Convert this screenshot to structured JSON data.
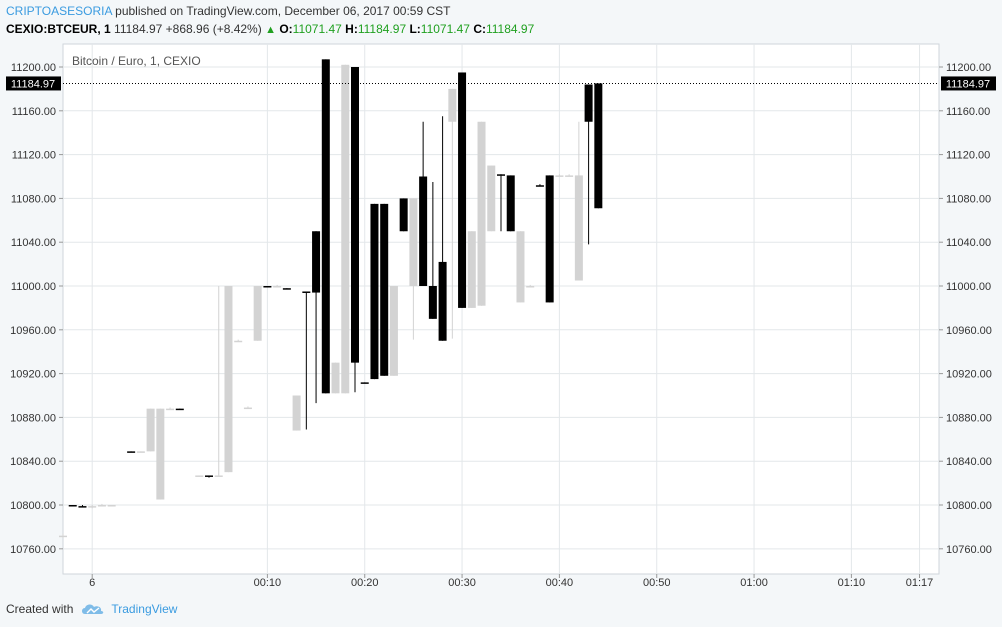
{
  "header": {
    "author": "CRIPTOASESORIA",
    "published": "published on TradingView.com, December 06, 2017 00:59 CST",
    "symbol": "CEXIO:BTCEUR, 1",
    "last": "11184.97",
    "change": "+868.96 (+8.42%)",
    "o_label": "O:",
    "o_value": "11071.47",
    "h_label": "H:",
    "h_value": "11184.97",
    "l_label": "L:",
    "l_value": "11071.47",
    "c_label": "C:",
    "c_value": "11184.97"
  },
  "footer": {
    "created_with": "Created with",
    "brand": "TradingView"
  },
  "colors": {
    "up": "#d3d3d3",
    "down": "#000000",
    "grid": "#e3e7ea",
    "axis_text": "#333333",
    "accent": "#3a9be0"
  },
  "chart_data": {
    "type": "candlestick",
    "title": "Bitcoin / Euro, 1, CEXIO",
    "y_ticks": [
      10760,
      10800,
      10840,
      10880,
      10920,
      10960,
      11000,
      11040,
      11080,
      11120,
      11160,
      11200
    ],
    "ylim": [
      10737,
      11221
    ],
    "y_tick_labels": [
      "10760.00",
      "10800.00",
      "10840.00",
      "10880.00",
      "10920.00",
      "10960.00",
      "11000.00",
      "11040.00",
      "11080.00",
      "11120.00",
      "11160.00",
      "11200.00"
    ],
    "x_ticks": [
      {
        "label": "6",
        "minute": -8
      },
      {
        "label": "00:10",
        "minute": 10
      },
      {
        "label": "00:20",
        "minute": 20
      },
      {
        "label": "00:30",
        "minute": 30
      },
      {
        "label": "00:40",
        "minute": 40
      },
      {
        "label": "00:50",
        "minute": 50
      },
      {
        "label": "01:00",
        "minute": 60
      },
      {
        "label": "01:10",
        "minute": 70
      },
      {
        "label": "01:17",
        "minute": 77
      }
    ],
    "xlim": [
      -11,
      79
    ],
    "last_price": 11184.97,
    "last_price_label": "11184.97",
    "grid": true,
    "candles": [
      {
        "t": -11,
        "o": 10772,
        "h": 10774,
        "l": 10770,
        "c": 10772
      },
      {
        "t": -10,
        "o": 10800,
        "h": 10800,
        "l": 10799,
        "c": 10799
      },
      {
        "t": -9,
        "o": 10799,
        "h": 10800,
        "l": 10798,
        "c": 10798
      },
      {
        "t": -8,
        "o": 10798,
        "h": 10800,
        "l": 10797,
        "c": 10799
      },
      {
        "t": -7,
        "o": 10799,
        "h": 10801,
        "l": 10799,
        "c": 10800
      },
      {
        "t": -6,
        "o": 10800,
        "h": 10800,
        "l": 10800,
        "c": 10800
      },
      {
        "t": -4,
        "o": 10849,
        "h": 10849,
        "l": 10848,
        "c": 10848
      },
      {
        "t": -3,
        "o": 10849,
        "h": 10849,
        "l": 10848,
        "c": 10849
      },
      {
        "t": -2,
        "o": 10849,
        "h": 10888,
        "l": 10849,
        "c": 10888
      },
      {
        "t": -1,
        "o": 10805,
        "h": 10888,
        "l": 10805,
        "c": 10888
      },
      {
        "t": 0,
        "o": 10888,
        "h": 10889,
        "l": 10887,
        "c": 10888
      },
      {
        "t": 1,
        "o": 10888,
        "h": 10888,
        "l": 10887,
        "c": 10887
      },
      {
        "t": 3,
        "o": 10827,
        "h": 10827,
        "l": 10826,
        "c": 10827
      },
      {
        "t": 4,
        "o": 10827,
        "h": 10827,
        "l": 10825,
        "c": 10826
      },
      {
        "t": 5,
        "o": 10827,
        "h": 11000,
        "l": 10826,
        "c": 10827
      },
      {
        "t": 6,
        "o": 10830,
        "h": 11000,
        "l": 10830,
        "c": 11000
      },
      {
        "t": 7,
        "o": 10950,
        "h": 10951,
        "l": 10949,
        "c": 10950
      },
      {
        "t": 8,
        "o": 10889,
        "h": 10890,
        "l": 10888,
        "c": 10889
      },
      {
        "t": 9,
        "o": 10950,
        "h": 11000,
        "l": 10950,
        "c": 11000
      },
      {
        "t": 10,
        "o": 11000,
        "h": 11000,
        "l": 10999,
        "c": 10999
      },
      {
        "t": 11,
        "o": 11000,
        "h": 11001,
        "l": 10999,
        "c": 11000
      },
      {
        "t": 12,
        "o": 10998,
        "h": 10998,
        "l": 10997,
        "c": 10997
      },
      {
        "t": 13,
        "o": 10868,
        "h": 10900,
        "l": 10868,
        "c": 10900
      },
      {
        "t": 14,
        "o": 10995,
        "h": 10995,
        "l": 10869,
        "c": 10994
      },
      {
        "t": 15,
        "o": 11050,
        "h": 11050,
        "l": 10893,
        "c": 10994
      },
      {
        "t": 16,
        "o": 11207,
        "h": 11207,
        "l": 10902,
        "c": 10902
      },
      {
        "t": 17,
        "o": 10902,
        "h": 10930,
        "l": 10902,
        "c": 10930
      },
      {
        "t": 18,
        "o": 10902,
        "h": 11202,
        "l": 10902,
        "c": 11202
      },
      {
        "t": 19,
        "o": 11200,
        "h": 11200,
        "l": 10903,
        "c": 10930
      },
      {
        "t": 20,
        "o": 10912,
        "h": 10912,
        "l": 10911,
        "c": 10911
      },
      {
        "t": 21,
        "o": 11075,
        "h": 11075,
        "l": 10915,
        "c": 10915
      },
      {
        "t": 22,
        "o": 11075,
        "h": 11075,
        "l": 10918,
        "c": 10918
      },
      {
        "t": 23,
        "o": 10918,
        "h": 11000,
        "l": 10918,
        "c": 11000
      },
      {
        "t": 24,
        "o": 11080,
        "h": 11080,
        "l": 11050,
        "c": 11050
      },
      {
        "t": 25,
        "o": 11000,
        "h": 11080,
        "l": 10951,
        "c": 11080
      },
      {
        "t": 26,
        "o": 11100,
        "h": 11150,
        "l": 11000,
        "c": 11000
      },
      {
        "t": 27,
        "o": 11000,
        "h": 11095,
        "l": 10970,
        "c": 10970
      },
      {
        "t": 28,
        "o": 11022,
        "h": 11155,
        "l": 10950,
        "c": 10950
      },
      {
        "t": 29,
        "o": 11150,
        "h": 11180,
        "l": 10952,
        "c": 11180
      },
      {
        "t": 30,
        "o": 11195,
        "h": 11195,
        "l": 10980,
        "c": 10980
      },
      {
        "t": 31,
        "o": 10980,
        "h": 11050,
        "l": 10980,
        "c": 11050
      },
      {
        "t": 32,
        "o": 10982,
        "h": 11150,
        "l": 10982,
        "c": 11150
      },
      {
        "t": 33,
        "o": 11050,
        "h": 11110,
        "l": 11050,
        "c": 11110
      },
      {
        "t": 34,
        "o": 11102,
        "h": 11102,
        "l": 11050,
        "c": 11101
      },
      {
        "t": 35,
        "o": 11101,
        "h": 11101,
        "l": 11050,
        "c": 11050
      },
      {
        "t": 36,
        "o": 10985,
        "h": 11050,
        "l": 10985,
        "c": 11050
      },
      {
        "t": 37,
        "o": 11000,
        "h": 11001,
        "l": 10999,
        "c": 11000
      },
      {
        "t": 38,
        "o": 11092,
        "h": 11093,
        "l": 11091,
        "c": 11091
      },
      {
        "t": 39,
        "o": 11101,
        "h": 11101,
        "l": 10985,
        "c": 10985
      },
      {
        "t": 40,
        "o": 11101,
        "h": 11102,
        "l": 11100,
        "c": 11101
      },
      {
        "t": 41,
        "o": 11101,
        "h": 11102,
        "l": 11100,
        "c": 11101
      },
      {
        "t": 42,
        "o": 11005,
        "h": 11150,
        "l": 11005,
        "c": 11101
      },
      {
        "t": 43,
        "o": 11184,
        "h": 11184,
        "l": 11038,
        "c": 11150
      },
      {
        "t": 44,
        "o": 11185,
        "h": 11185,
        "l": 11071,
        "c": 11071
      }
    ]
  }
}
